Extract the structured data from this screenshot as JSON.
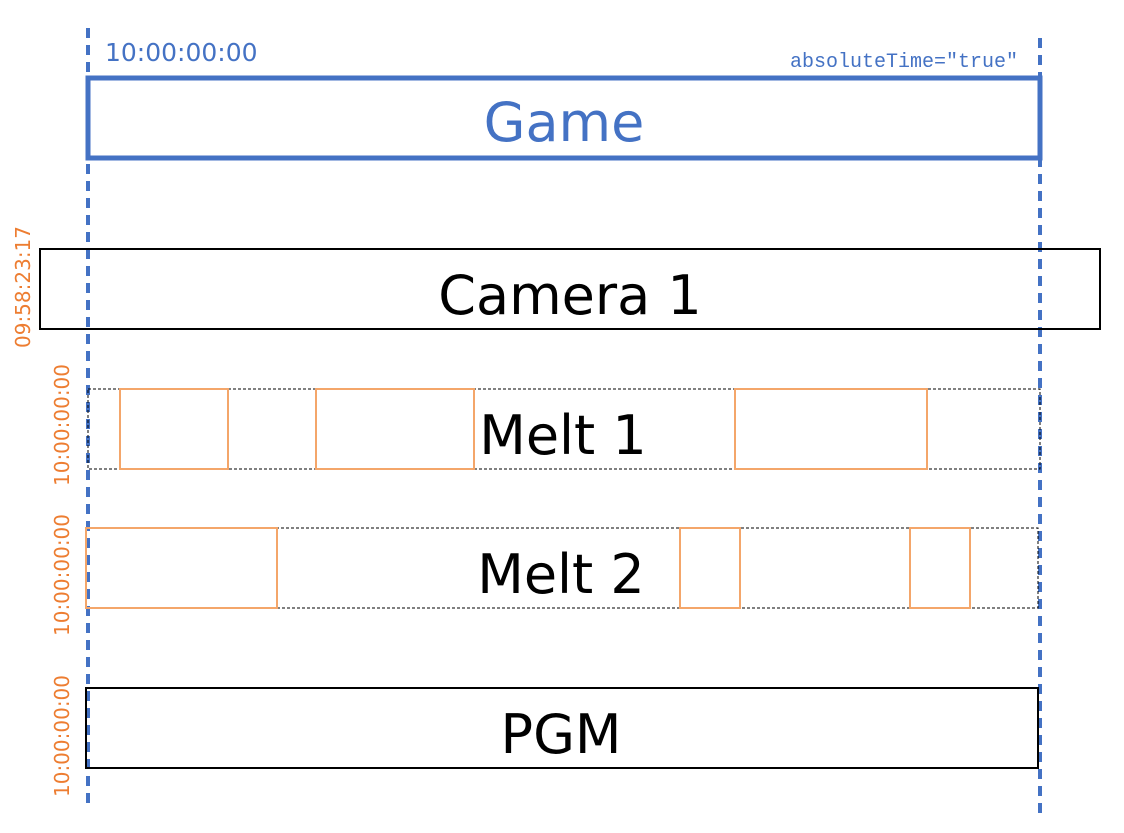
{
  "colors": {
    "blue": "#4472C4",
    "orange_text": "#ED7D31",
    "orange_box": "#F4A66A",
    "black": "#000000"
  },
  "game": {
    "start_time": "10:00:00:00",
    "attribute": "absoluteTime=\"true\"",
    "label": "Game"
  },
  "tracks": [
    {
      "label": "Camera 1",
      "time": "09:58:23:17",
      "style": "solid"
    },
    {
      "label": "Melt 1",
      "time": "10:00:00:00",
      "style": "dashed",
      "clips": 3
    },
    {
      "label": "Melt 2",
      "time": "10:00:00:00",
      "style": "dashed",
      "clips": 3
    },
    {
      "label": "PGM",
      "time": "10:00:00:00",
      "style": "solid"
    }
  ]
}
